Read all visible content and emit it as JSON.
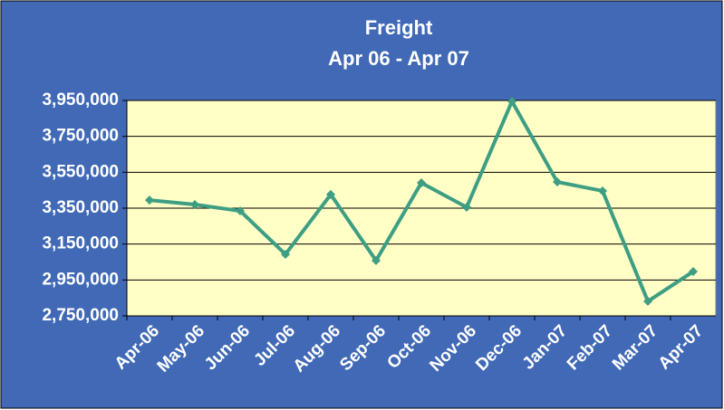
{
  "chart_data": {
    "type": "line",
    "title": "Freight",
    "subtitle": "Apr 06 - Apr 07",
    "categories": [
      "Apr-06",
      "May-06",
      "Jun-06",
      "Jul-06",
      "Aug-06",
      "Sep-06",
      "Oct-06",
      "Nov-06",
      "Dec-06",
      "Jan-07",
      "Feb-07",
      "Mar-07",
      "Apr-07"
    ],
    "series": [
      {
        "name": "Freight",
        "color": "#3e9e84",
        "values": [
          3395000,
          3370000,
          3335000,
          3093000,
          3426000,
          3058000,
          3491000,
          3355000,
          3945000,
          3496000,
          3446000,
          2831000,
          2997000
        ]
      }
    ],
    "ylim": [
      2750000,
      3950000
    ],
    "yticks": [
      {
        "value": 2750000,
        "label": "2,750,000"
      },
      {
        "value": 2950000,
        "label": "2,950,000"
      },
      {
        "value": 3150000,
        "label": "3,150,000"
      },
      {
        "value": 3350000,
        "label": "3,350,000"
      },
      {
        "value": 3550000,
        "label": "3,550,000"
      },
      {
        "value": 3750000,
        "label": "3,750,000"
      },
      {
        "value": 3950000,
        "label": "3,950,000"
      }
    ],
    "grid": true
  }
}
